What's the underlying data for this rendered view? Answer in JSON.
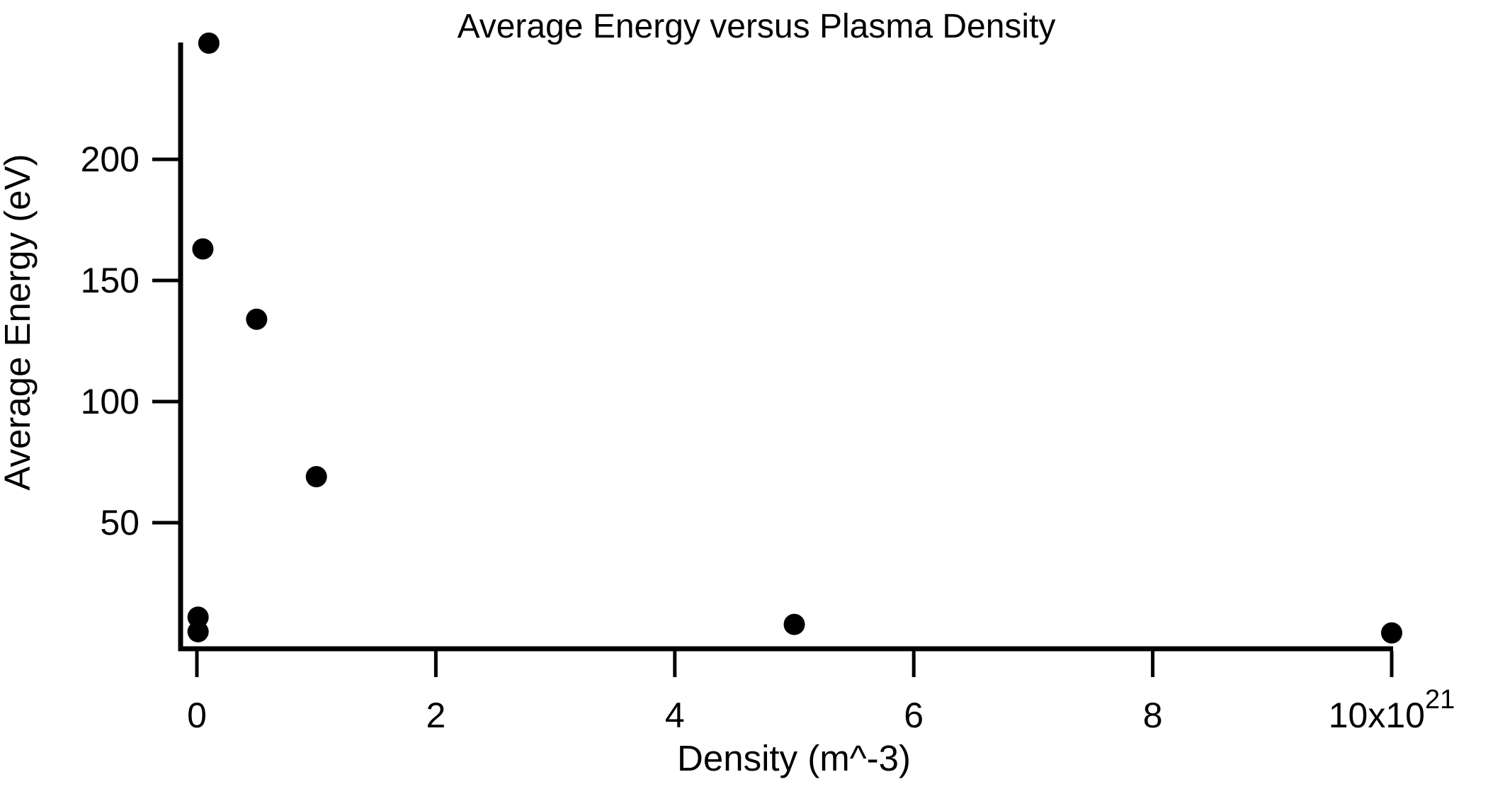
{
  "window": {
    "kind": "scatter-plot-figure",
    "background_color": "#ffffff",
    "foreground_color": "#000000"
  },
  "chart_data": {
    "type": "scatter",
    "title": "Average Energy versus Plasma Density",
    "xlabel": "Density (m^-3)",
    "ylabel": "Average Energy (eV)",
    "x_units_note": "x values are in units of 1e21 m^-3; last x tick label carries the 10x10^21 exponent",
    "xlim": [
      0,
      10
    ],
    "ylim": [
      0,
      250
    ],
    "grid": false,
    "legend": false,
    "marker": {
      "shape": "circle",
      "radius_px": 15,
      "color": "#000000"
    },
    "xticks": [
      {
        "value": 0,
        "label": "0"
      },
      {
        "value": 2,
        "label": "2"
      },
      {
        "value": 4,
        "label": "4"
      },
      {
        "value": 6,
        "label": "6"
      },
      {
        "value": 8,
        "label": "8"
      },
      {
        "value": 10,
        "label": "10x10",
        "superscript": "21"
      }
    ],
    "yticks": [
      {
        "value": 50,
        "label": "50"
      },
      {
        "value": 100,
        "label": "100"
      },
      {
        "value": 150,
        "label": "150"
      },
      {
        "value": 200,
        "label": "200"
      }
    ],
    "points": [
      {
        "x": 0.01,
        "y": 11
      },
      {
        "x": 0.01,
        "y": 5
      },
      {
        "x": 0.05,
        "y": 163
      },
      {
        "x": 0.1,
        "y": 248
      },
      {
        "x": 0.5,
        "y": 134
      },
      {
        "x": 1.0,
        "y": 69
      },
      {
        "x": 5.0,
        "y": 8
      },
      {
        "x": 10.0,
        "y": 4.5
      }
    ]
  }
}
